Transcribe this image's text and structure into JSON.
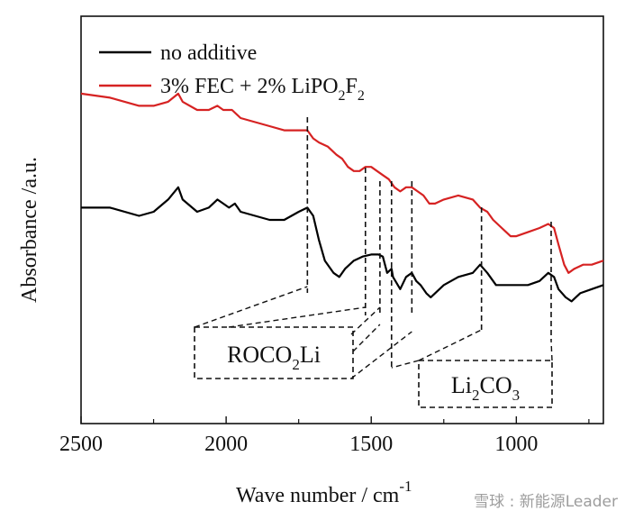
{
  "chart_data": {
    "type": "line",
    "title": "",
    "xlabel": "Wave number / cm",
    "xlabel_sup": "-1",
    "ylabel": "Absorbance /a.u.",
    "xlim": [
      2500,
      700
    ],
    "x_reversed": true,
    "y_ticks_shown": false,
    "ylim": [
      0,
      1
    ],
    "x_ticks": [
      2500,
      2000,
      1500,
      1000
    ],
    "legend_position": "top-left",
    "series": [
      {
        "name": "no additive",
        "color": "#000000",
        "points": [
          [
            2500,
            0.53
          ],
          [
            2400,
            0.53
          ],
          [
            2300,
            0.51
          ],
          [
            2250,
            0.52
          ],
          [
            2200,
            0.55
          ],
          [
            2165,
            0.58
          ],
          [
            2150,
            0.55
          ],
          [
            2100,
            0.52
          ],
          [
            2060,
            0.53
          ],
          [
            2030,
            0.55
          ],
          [
            2010,
            0.54
          ],
          [
            1990,
            0.53
          ],
          [
            1970,
            0.54
          ],
          [
            1950,
            0.52
          ],
          [
            1900,
            0.51
          ],
          [
            1850,
            0.5
          ],
          [
            1800,
            0.5
          ],
          [
            1750,
            0.52
          ],
          [
            1720,
            0.53
          ],
          [
            1700,
            0.51
          ],
          [
            1680,
            0.45
          ],
          [
            1660,
            0.4
          ],
          [
            1630,
            0.37
          ],
          [
            1610,
            0.36
          ],
          [
            1590,
            0.38
          ],
          [
            1560,
            0.4
          ],
          [
            1530,
            0.41
          ],
          [
            1500,
            0.415
          ],
          [
            1475,
            0.415
          ],
          [
            1460,
            0.41
          ],
          [
            1445,
            0.37
          ],
          [
            1430,
            0.38
          ],
          [
            1425,
            0.36
          ],
          [
            1400,
            0.33
          ],
          [
            1380,
            0.36
          ],
          [
            1360,
            0.37
          ],
          [
            1345,
            0.35
          ],
          [
            1330,
            0.34
          ],
          [
            1310,
            0.32
          ],
          [
            1295,
            0.31
          ],
          [
            1280,
            0.32
          ],
          [
            1250,
            0.34
          ],
          [
            1200,
            0.36
          ],
          [
            1150,
            0.37
          ],
          [
            1125,
            0.39
          ],
          [
            1100,
            0.37
          ],
          [
            1070,
            0.34
          ],
          [
            1040,
            0.34
          ],
          [
            1000,
            0.34
          ],
          [
            960,
            0.34
          ],
          [
            920,
            0.35
          ],
          [
            890,
            0.37
          ],
          [
            870,
            0.36
          ],
          [
            855,
            0.33
          ],
          [
            830,
            0.31
          ],
          [
            810,
            0.3
          ],
          [
            780,
            0.32
          ],
          [
            740,
            0.33
          ],
          [
            700,
            0.34
          ]
        ]
      },
      {
        "name": "3% FEC + 2% LiPO2F2",
        "color": "#d62222",
        "points": [
          [
            2500,
            0.81
          ],
          [
            2400,
            0.8
          ],
          [
            2300,
            0.78
          ],
          [
            2250,
            0.78
          ],
          [
            2200,
            0.79
          ],
          [
            2165,
            0.81
          ],
          [
            2150,
            0.79
          ],
          [
            2100,
            0.77
          ],
          [
            2060,
            0.77
          ],
          [
            2030,
            0.78
          ],
          [
            2010,
            0.77
          ],
          [
            1980,
            0.77
          ],
          [
            1950,
            0.75
          ],
          [
            1900,
            0.74
          ],
          [
            1850,
            0.73
          ],
          [
            1800,
            0.72
          ],
          [
            1750,
            0.72
          ],
          [
            1720,
            0.72
          ],
          [
            1700,
            0.7
          ],
          [
            1680,
            0.69
          ],
          [
            1650,
            0.68
          ],
          [
            1620,
            0.66
          ],
          [
            1600,
            0.65
          ],
          [
            1580,
            0.63
          ],
          [
            1560,
            0.62
          ],
          [
            1540,
            0.62
          ],
          [
            1520,
            0.63
          ],
          [
            1500,
            0.63
          ],
          [
            1480,
            0.62
          ],
          [
            1460,
            0.61
          ],
          [
            1440,
            0.6
          ],
          [
            1420,
            0.58
          ],
          [
            1400,
            0.57
          ],
          [
            1380,
            0.58
          ],
          [
            1360,
            0.58
          ],
          [
            1340,
            0.57
          ],
          [
            1320,
            0.56
          ],
          [
            1300,
            0.54
          ],
          [
            1280,
            0.54
          ],
          [
            1250,
            0.55
          ],
          [
            1200,
            0.56
          ],
          [
            1150,
            0.55
          ],
          [
            1125,
            0.53
          ],
          [
            1100,
            0.52
          ],
          [
            1080,
            0.5
          ],
          [
            1050,
            0.48
          ],
          [
            1020,
            0.46
          ],
          [
            1000,
            0.46
          ],
          [
            960,
            0.47
          ],
          [
            920,
            0.48
          ],
          [
            890,
            0.49
          ],
          [
            870,
            0.48
          ],
          [
            855,
            0.44
          ],
          [
            835,
            0.39
          ],
          [
            820,
            0.37
          ],
          [
            800,
            0.38
          ],
          [
            770,
            0.39
          ],
          [
            740,
            0.39
          ],
          [
            700,
            0.4
          ]
        ]
      }
    ],
    "marker_lines": [
      1720,
      1520,
      1470,
      1430,
      1360,
      1120,
      880
    ],
    "annotations": [
      {
        "text_main": "ROCO",
        "text_sub": "2",
        "text_tail": "Li",
        "lines_to": [
          1720,
          1520,
          1470,
          1360
        ]
      },
      {
        "text_main": "Li",
        "text_sub": "2",
        "text_mid": "CO",
        "text_sub2": "3",
        "lines_to": [
          1430,
          880
        ]
      }
    ]
  },
  "legend": {
    "items": [
      {
        "label_parts": [
          "no additive"
        ],
        "color": "#000000"
      },
      {
        "label_parts": [
          "3% FEC + 2% LiPO",
          "2",
          "F",
          "2"
        ],
        "color": "#d62222"
      }
    ]
  },
  "watermark": {
    "text": "雪球 : 新能源Leader"
  }
}
